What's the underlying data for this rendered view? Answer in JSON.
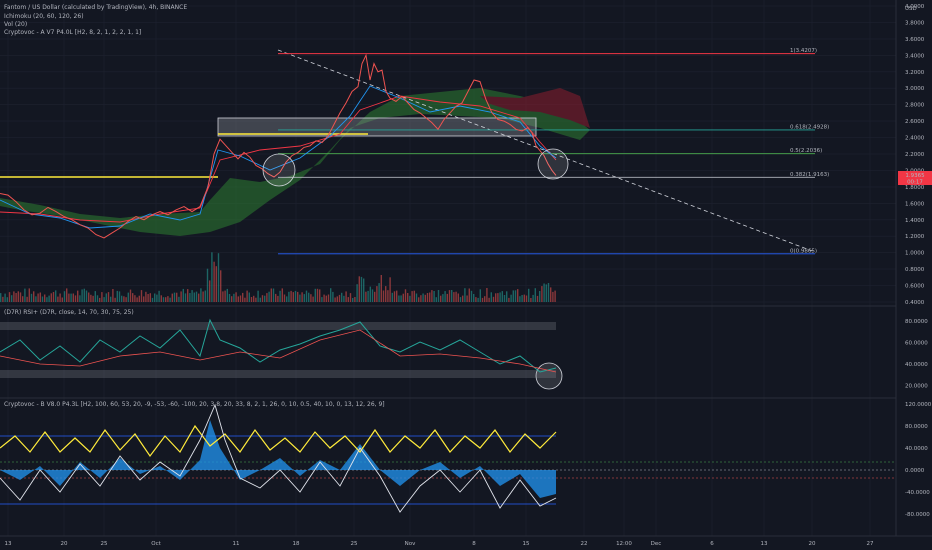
{
  "header": {
    "title": "Fantom / US Dollar (calculated by TradingView), 4h, BINANCE",
    "indicators": [
      "Ichimoku (20, 60, 120, 26)",
      "Vol (20)",
      "Cryptovoc - A V7 P4.0L [H2, 8, 2, 1, 2, 2, 1, 1]"
    ]
  },
  "panes": {
    "rsi_label": "(D7R) RSI+ (D7R, close, 14, 70, 30, 75, 25)",
    "osc_label": "Cryptovoc - B V8.0 P4.3L [H2, 100, 60, 53, 20, -9, -53, -60, -100, 20, 3.8, 20, 33, 8, 2, 1, 26, 0, 10, 0.5, 40, 10, 0, 13, 12, 26, 9]"
  },
  "chart_data": {
    "type": "line",
    "price_axis": {
      "unit": "USD",
      "ticks": [
        "4.0000",
        "3.8000",
        "3.6000",
        "3.4000",
        "3.2000",
        "3.0000",
        "2.8000",
        "2.6000",
        "2.4000",
        "2.2000",
        "2.0000",
        "1.8000",
        "1.6000",
        "1.4000",
        "1.2000",
        "1.0000",
        "0.8000",
        "0.6000",
        "0.4000"
      ],
      "range": [
        0.38,
        4.0
      ],
      "current_price": "1.9365",
      "countdown": "00:17"
    },
    "rsi_axis": {
      "ticks": [
        "80.0000",
        "60.0000",
        "40.0000",
        "20.0000"
      ],
      "range": [
        10,
        90
      ]
    },
    "osc_axis": {
      "ticks": [
        "120.0000",
        "80.0000",
        "40.0000",
        "0.0000",
        "-40.0000",
        "-80.0000",
        "-120.0000"
      ],
      "range": [
        -120,
        120
      ]
    },
    "x_axis": {
      "ticks": [
        "13",
        "20",
        "25",
        "Oct",
        "11",
        "18",
        "25",
        "Nov",
        "8",
        "15",
        "22",
        "12:00",
        "Dec",
        "6",
        "13",
        "20",
        "27"
      ]
    },
    "fib_levels": [
      {
        "label": "1(3.4207)",
        "price": 3.4207,
        "color": "#f23645"
      },
      {
        "label": "0.618(2.4928)",
        "price": 2.4928,
        "color": "#26a69a"
      },
      {
        "label": "0.5(2.2036)",
        "price": 2.2036,
        "color": "#4caf50"
      },
      {
        "label": "0.382(1.9163)",
        "price": 1.9163,
        "color": "#b2b5be"
      },
      {
        "label": "0(0.9865)",
        "price": 0.9865,
        "color": "#2962ff"
      }
    ],
    "price_series": [
      [
        0,
        1.72
      ],
      [
        8,
        1.7
      ],
      [
        16,
        1.62
      ],
      [
        24,
        1.52
      ],
      [
        32,
        1.46
      ],
      [
        40,
        1.48
      ],
      [
        48,
        1.55
      ],
      [
        56,
        1.5
      ],
      [
        64,
        1.44
      ],
      [
        72,
        1.4
      ],
      [
        80,
        1.34
      ],
      [
        88,
        1.3
      ],
      [
        96,
        1.22
      ],
      [
        104,
        1.18
      ],
      [
        112,
        1.24
      ],
      [
        120,
        1.3
      ],
      [
        128,
        1.38
      ],
      [
        136,
        1.44
      ],
      [
        144,
        1.4
      ],
      [
        152,
        1.46
      ],
      [
        160,
        1.5
      ],
      [
        168,
        1.46
      ],
      [
        176,
        1.52
      ],
      [
        184,
        1.56
      ],
      [
        192,
        1.5
      ],
      [
        200,
        1.56
      ],
      [
        208,
        1.8
      ],
      [
        214,
        2.2
      ],
      [
        220,
        2.38
      ],
      [
        226,
        2.3
      ],
      [
        232,
        2.22
      ],
      [
        238,
        2.14
      ],
      [
        244,
        2.22
      ],
      [
        250,
        2.16
      ],
      [
        256,
        2.06
      ],
      [
        262,
        2.02
      ],
      [
        268,
        1.96
      ],
      [
        274,
        1.92
      ],
      [
        280,
        1.98
      ],
      [
        286,
        2.1
      ],
      [
        292,
        2.18
      ],
      [
        298,
        2.22
      ],
      [
        304,
        2.28
      ],
      [
        310,
        2.3
      ],
      [
        316,
        2.36
      ],
      [
        322,
        2.34
      ],
      [
        328,
        2.42
      ],
      [
        334,
        2.56
      ],
      [
        340,
        2.7
      ],
      [
        346,
        2.82
      ],
      [
        352,
        2.96
      ],
      [
        358,
        3.02
      ],
      [
        362,
        3.3
      ],
      [
        366,
        3.4
      ],
      [
        370,
        3.1
      ],
      [
        374,
        3.3
      ],
      [
        378,
        3.2
      ],
      [
        382,
        3.22
      ],
      [
        386,
        2.96
      ],
      [
        390,
        2.88
      ],
      [
        396,
        2.84
      ],
      [
        402,
        2.9
      ],
      [
        408,
        2.82
      ],
      [
        414,
        2.74
      ],
      [
        420,
        2.7
      ],
      [
        426,
        2.64
      ],
      [
        432,
        2.58
      ],
      [
        438,
        2.5
      ],
      [
        444,
        2.62
      ],
      [
        450,
        2.7
      ],
      [
        456,
        2.78
      ],
      [
        462,
        2.82
      ],
      [
        468,
        2.96
      ],
      [
        474,
        3.1
      ],
      [
        480,
        3.08
      ],
      [
        486,
        2.86
      ],
      [
        492,
        2.7
      ],
      [
        498,
        2.62
      ],
      [
        504,
        2.6
      ],
      [
        510,
        2.56
      ],
      [
        516,
        2.5
      ],
      [
        522,
        2.48
      ],
      [
        528,
        2.52
      ],
      [
        532,
        2.46
      ],
      [
        536,
        2.3
      ],
      [
        540,
        2.24
      ],
      [
        544,
        2.18
      ],
      [
        548,
        2.08
      ],
      [
        552,
        2.0
      ],
      [
        556,
        1.94
      ]
    ]
  }
}
